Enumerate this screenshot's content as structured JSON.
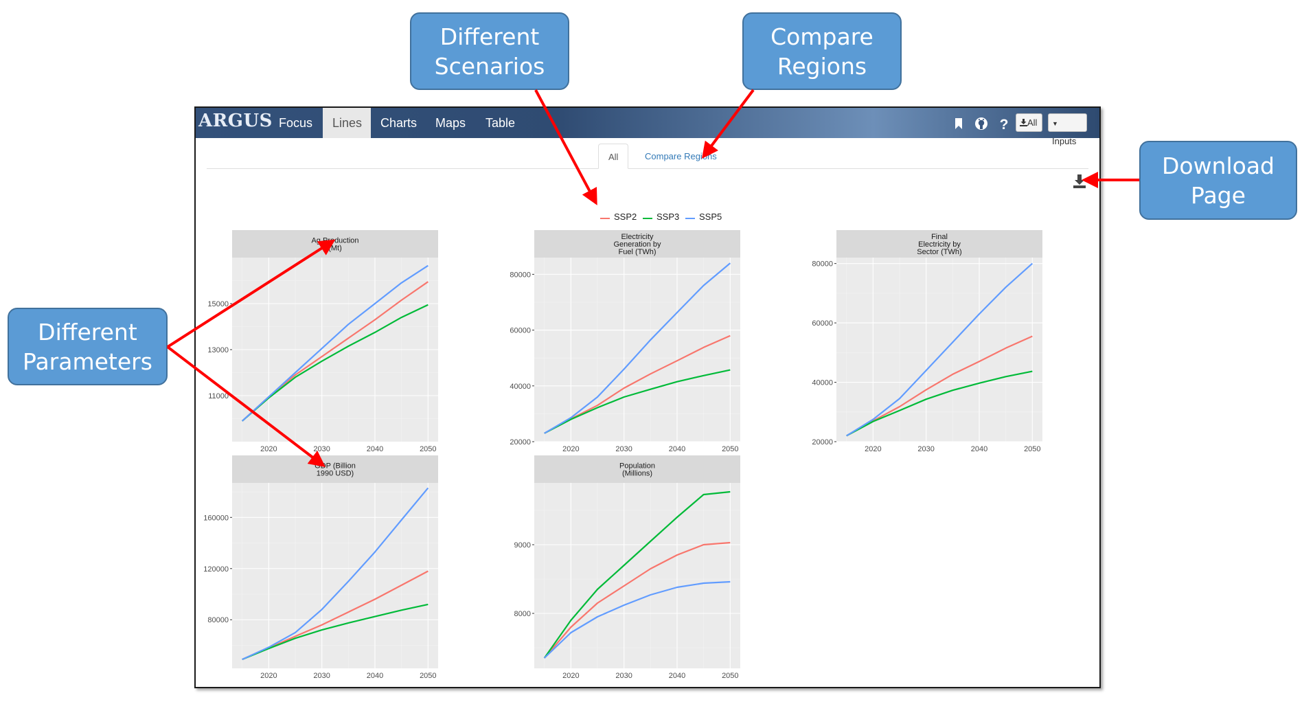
{
  "callouts": {
    "scenarios": "Different\nScenarios",
    "regions": "Compare\nRegions",
    "download": "Download\nPage",
    "parameters": "Different\nParameters"
  },
  "app": {
    "brand": "ARGUS",
    "nav_tabs": [
      {
        "label": "Focus",
        "active": false
      },
      {
        "label": "Lines",
        "active": true
      },
      {
        "label": "Charts",
        "active": false
      },
      {
        "label": "Maps",
        "active": false
      },
      {
        "label": "Table",
        "active": false
      }
    ],
    "icons": [
      "bookmark-icon",
      "github-icon",
      "help-icon"
    ],
    "all_button": "All",
    "inputs_button": "Inputs",
    "subtabs": {
      "all": "All",
      "compare": "Compare Regions"
    },
    "legend": [
      {
        "name": "SSP2",
        "color": "#f8766d"
      },
      {
        "name": "SSP3",
        "color": "#00ba38"
      },
      {
        "name": "SSP5",
        "color": "#619cff"
      }
    ]
  },
  "chart_data": [
    {
      "type": "line",
      "title": "Ag Production\n(Mt)",
      "x": [
        2015,
        2020,
        2025,
        2030,
        2035,
        2040,
        2045,
        2050
      ],
      "xticks": [
        2020,
        2030,
        2040,
        2050
      ],
      "ylim": [
        9000,
        17000
      ],
      "yticks": [
        11000,
        13000,
        15000
      ],
      "series": [
        {
          "name": "SSP2",
          "values": [
            9900,
            10950,
            11900,
            12700,
            13500,
            14300,
            15150,
            15950
          ]
        },
        {
          "name": "SSP3",
          "values": [
            9900,
            10900,
            11800,
            12500,
            13150,
            13750,
            14400,
            14950
          ]
        },
        {
          "name": "SSP5",
          "values": [
            9900,
            10950,
            12000,
            13050,
            14100,
            15000,
            15900,
            16650
          ]
        }
      ]
    },
    {
      "type": "line",
      "title": "Electricity\nGeneration by\nFuel (TWh)",
      "x": [
        2015,
        2020,
        2025,
        2030,
        2035,
        2040,
        2045,
        2050
      ],
      "xticks": [
        2020,
        2030,
        2040,
        2050
      ],
      "ylim": [
        20000,
        86000
      ],
      "yticks": [
        20000,
        40000,
        60000,
        80000
      ],
      "series": [
        {
          "name": "SSP2",
          "values": [
            23000,
            28200,
            33000,
            39200,
            44300,
            49000,
            53800,
            58000
          ]
        },
        {
          "name": "SSP3",
          "values": [
            23000,
            28000,
            32200,
            36000,
            38800,
            41500,
            43700,
            45700
          ]
        },
        {
          "name": "SSP5",
          "values": [
            23000,
            28600,
            36000,
            46000,
            56500,
            66300,
            76000,
            84000
          ]
        }
      ]
    },
    {
      "type": "line",
      "title": "Final\nElectricity by\nSector (TWh)",
      "x": [
        2015,
        2020,
        2025,
        2030,
        2035,
        2040,
        2045,
        2050
      ],
      "xticks": [
        2020,
        2030,
        2040,
        2050
      ],
      "ylim": [
        20000,
        82000
      ],
      "yticks": [
        20000,
        40000,
        60000,
        80000
      ],
      "series": [
        {
          "name": "SSP2",
          "values": [
            22000,
            27000,
            31800,
            37500,
            42700,
            47000,
            51500,
            55500
          ]
        },
        {
          "name": "SSP3",
          "values": [
            22000,
            26800,
            30500,
            34300,
            37300,
            39700,
            41900,
            43700
          ]
        },
        {
          "name": "SSP5",
          "values": [
            22000,
            27500,
            34500,
            44000,
            53500,
            63000,
            72000,
            80000
          ]
        }
      ]
    },
    {
      "type": "line",
      "title": "GDP (Billion\n1990 USD)",
      "x": [
        2015,
        2020,
        2025,
        2030,
        2035,
        2040,
        2045,
        2050
      ],
      "xticks": [
        2020,
        2030,
        2040,
        2050
      ],
      "ylim": [
        42000,
        187000
      ],
      "yticks": [
        80000,
        120000,
        160000
      ],
      "series": [
        {
          "name": "SSP2",
          "values": [
            49000,
            58000,
            67000,
            76000,
            86000,
            96000,
            107000,
            118000
          ]
        },
        {
          "name": "SSP3",
          "values": [
            49000,
            57500,
            65500,
            72000,
            77500,
            82500,
            87500,
            92000
          ]
        },
        {
          "name": "SSP5",
          "values": [
            49000,
            58500,
            70000,
            88000,
            110000,
            133000,
            158000,
            183000
          ]
        }
      ]
    },
    {
      "type": "line",
      "title": "Population\n(Millions)",
      "x": [
        2015,
        2020,
        2025,
        2030,
        2035,
        2040,
        2045,
        2050
      ],
      "xticks": [
        2020,
        2030,
        2040,
        2050
      ],
      "ylim": [
        7200,
        9900
      ],
      "yticks": [
        8000,
        9000
      ],
      "series": [
        {
          "name": "SSP2",
          "values": [
            7350,
            7800,
            8150,
            8400,
            8650,
            8850,
            9000,
            9030
          ]
        },
        {
          "name": "SSP3",
          "values": [
            7350,
            7900,
            8350,
            8700,
            9050,
            9400,
            9730,
            9770
          ]
        },
        {
          "name": "SSP5",
          "values": [
            7350,
            7720,
            7950,
            8120,
            8270,
            8380,
            8440,
            8460
          ]
        }
      ]
    }
  ]
}
